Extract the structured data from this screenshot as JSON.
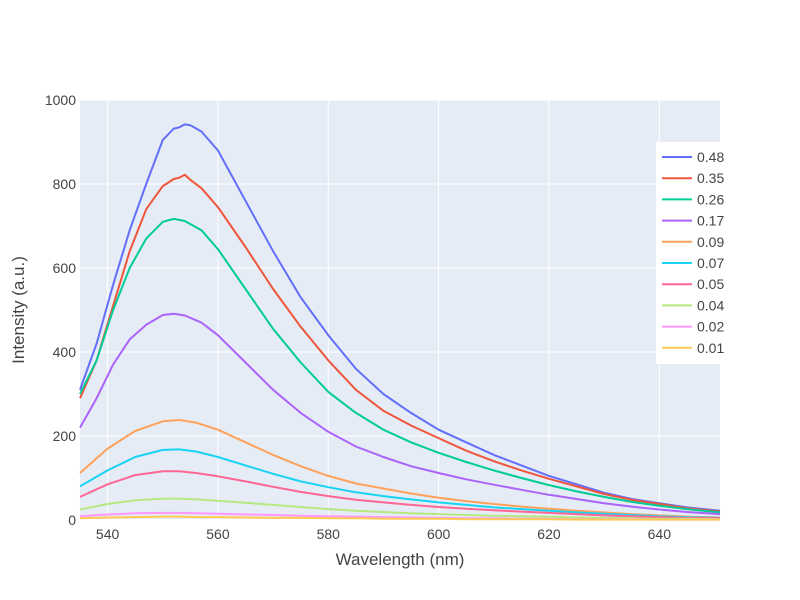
{
  "chart_data": {
    "type": "line",
    "xlabel": "Wavelength (nm)",
    "ylabel": "Intensity (a.u.)",
    "xlim": [
      535,
      651
    ],
    "ylim": [
      0,
      1000
    ],
    "x_ticks": [
      "540",
      "560",
      "580",
      "600",
      "620",
      "640"
    ],
    "y_ticks": [
      "0",
      "200",
      "400",
      "600",
      "800",
      "1000"
    ],
    "grid": true,
    "legend_position": "right",
    "plot_background": "#e5ecf6",
    "series": [
      {
        "name": "0.48",
        "color": "#636efa",
        "x": [
          535,
          538,
          541,
          544,
          547,
          550,
          552,
          553,
          554,
          555,
          557,
          560,
          565,
          570,
          575,
          580,
          585,
          590,
          595,
          600,
          605,
          610,
          615,
          620,
          625,
          630,
          635,
          640,
          645,
          651
        ],
        "y": [
          310,
          420,
          560,
          690,
          800,
          905,
          932,
          935,
          942,
          940,
          925,
          880,
          760,
          640,
          530,
          440,
          360,
          300,
          255,
          215,
          185,
          155,
          130,
          105,
          85,
          65,
          50,
          40,
          30,
          22
        ]
      },
      {
        "name": "0.35",
        "color": "#ef553b",
        "x": [
          535,
          538,
          541,
          544,
          547,
          550,
          552,
          553,
          554,
          555,
          557,
          560,
          565,
          570,
          575,
          580,
          585,
          590,
          595,
          600,
          605,
          610,
          615,
          620,
          625,
          630,
          635,
          640,
          645,
          651
        ],
        "y": [
          290,
          380,
          510,
          640,
          740,
          795,
          812,
          815,
          822,
          810,
          790,
          745,
          650,
          550,
          460,
          380,
          310,
          260,
          225,
          195,
          165,
          140,
          118,
          98,
          80,
          62,
          48,
          38,
          28,
          20
        ]
      },
      {
        "name": "0.26",
        "color": "#00cc96",
        "x": [
          535,
          538,
          541,
          544,
          547,
          550,
          552,
          554,
          557,
          560,
          565,
          570,
          575,
          580,
          585,
          590,
          595,
          600,
          605,
          610,
          615,
          620,
          625,
          630,
          635,
          640,
          645,
          651
        ],
        "y": [
          300,
          380,
          500,
          600,
          670,
          710,
          717,
          712,
          690,
          645,
          550,
          455,
          375,
          305,
          255,
          215,
          185,
          160,
          138,
          118,
          100,
          83,
          68,
          55,
          43,
          34,
          26,
          18
        ]
      },
      {
        "name": "0.17",
        "color": "#ab63fa",
        "x": [
          535,
          538,
          541,
          544,
          547,
          550,
          552,
          554,
          557,
          560,
          565,
          570,
          575,
          580,
          585,
          590,
          595,
          600,
          605,
          610,
          615,
          620,
          625,
          630,
          635,
          640,
          645,
          651
        ],
        "y": [
          220,
          290,
          370,
          430,
          465,
          488,
          491,
          487,
          470,
          440,
          375,
          310,
          255,
          210,
          175,
          150,
          128,
          112,
          97,
          84,
          72,
          60,
          50,
          40,
          32,
          25,
          19,
          14
        ]
      },
      {
        "name": "0.09",
        "color": "#ffa15a",
        "x": [
          535,
          540,
          545,
          550,
          553,
          556,
          560,
          565,
          570,
          575,
          580,
          585,
          590,
          595,
          600,
          605,
          610,
          615,
          620,
          625,
          630,
          635,
          640,
          645,
          651
        ],
        "y": [
          112,
          170,
          212,
          235,
          238,
          232,
          215,
          185,
          155,
          128,
          105,
          87,
          75,
          63,
          53,
          45,
          38,
          32,
          27,
          22,
          18,
          14,
          11,
          8,
          6
        ]
      },
      {
        "name": "0.07",
        "color": "#19d3f3",
        "x": [
          535,
          540,
          545,
          550,
          553,
          556,
          560,
          565,
          570,
          575,
          580,
          585,
          590,
          595,
          600,
          605,
          610,
          615,
          620,
          625,
          630,
          635,
          640,
          645,
          651
        ],
        "y": [
          80,
          118,
          150,
          167,
          168,
          163,
          150,
          130,
          110,
          92,
          78,
          66,
          57,
          49,
          42,
          36,
          30,
          26,
          22,
          18,
          15,
          12,
          9,
          7,
          5
        ]
      },
      {
        "name": "0.05",
        "color": "#ff6692",
        "x": [
          535,
          540,
          545,
          550,
          553,
          556,
          560,
          565,
          570,
          575,
          580,
          585,
          590,
          595,
          600,
          605,
          610,
          615,
          620,
          625,
          630,
          635,
          640,
          645,
          651
        ],
        "y": [
          55,
          85,
          107,
          116,
          116,
          112,
          104,
          92,
          79,
          67,
          57,
          48,
          42,
          36,
          31,
          27,
          23,
          20,
          17,
          14,
          11,
          9,
          7,
          5,
          4
        ]
      },
      {
        "name": "0.04",
        "color": "#b6e880",
        "x": [
          535,
          540,
          545,
          550,
          553,
          556,
          560,
          565,
          570,
          575,
          580,
          585,
          590,
          595,
          600,
          605,
          610,
          615,
          620,
          625,
          630,
          635,
          640,
          645,
          651
        ],
        "y": [
          25,
          38,
          47,
          51,
          51,
          49,
          46,
          41,
          36,
          31,
          26,
          22,
          19,
          16,
          14,
          12,
          10,
          9,
          8,
          6,
          5,
          4,
          3,
          3,
          2
        ]
      },
      {
        "name": "0.02",
        "color": "#ff97ff",
        "x": [
          535,
          540,
          545,
          550,
          553,
          556,
          560,
          565,
          570,
          575,
          580,
          585,
          590,
          595,
          600,
          605,
          610,
          615,
          620,
          625,
          630,
          635,
          640,
          645,
          651
        ],
        "y": [
          9,
          13,
          16,
          17,
          17,
          16,
          15,
          13,
          12,
          10,
          9,
          8,
          7,
          6,
          5,
          4,
          4,
          3,
          3,
          2,
          2,
          2,
          1,
          1,
          1
        ]
      },
      {
        "name": "0.01",
        "color": "#fecb52",
        "x": [
          535,
          540,
          545,
          550,
          553,
          556,
          560,
          565,
          570,
          575,
          580,
          585,
          590,
          595,
          600,
          605,
          610,
          615,
          620,
          625,
          630,
          635,
          640,
          645,
          651
        ],
        "y": [
          4,
          6,
          7,
          8,
          8,
          7,
          7,
          6,
          5,
          5,
          4,
          4,
          3,
          3,
          3,
          2,
          2,
          2,
          2,
          1,
          1,
          1,
          1,
          1,
          1
        ]
      }
    ]
  }
}
